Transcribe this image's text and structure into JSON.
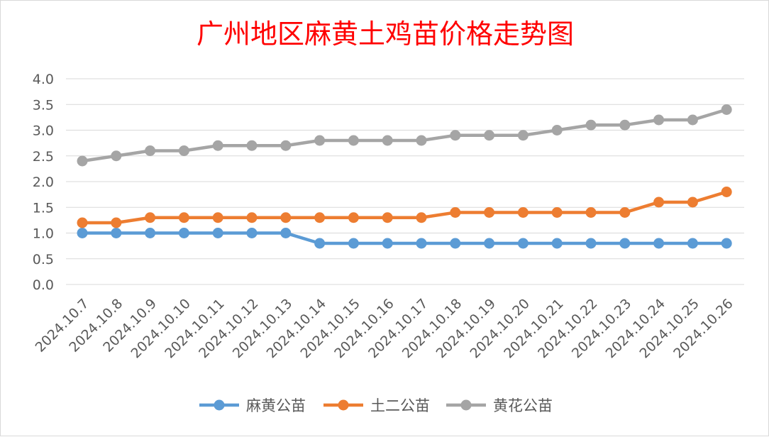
{
  "chart_data": {
    "type": "line",
    "title": "广州地区麻黄土鸡苗价格走势图",
    "title_color": "#ff0000",
    "categories": [
      "2024.10.7",
      "2024.10.8",
      "2024.10.9",
      "2024.10.10",
      "2024.10.11",
      "2024.10.12",
      "2024.10.13",
      "2024.10.14",
      "2024.10.15",
      "2024.10.16",
      "2024.10.17",
      "2024.10.18",
      "2024.10.19",
      "2024.10.20",
      "2024.10.21",
      "2024.10.22",
      "2024.10.23",
      "2024.10.24",
      "2024.10.25",
      "2024.10.26"
    ],
    "ylim": [
      0,
      4.0
    ],
    "yticks": [
      "0.0",
      "0.5",
      "1.0",
      "1.5",
      "2.0",
      "2.5",
      "3.0",
      "3.5",
      "4.0"
    ],
    "grid": true,
    "legend_position": "bottom",
    "series": [
      {
        "name": "麻黄公苗",
        "color": "#5b9bd5",
        "values": [
          1.0,
          1.0,
          1.0,
          1.0,
          1.0,
          1.0,
          1.0,
          0.8,
          0.8,
          0.8,
          0.8,
          0.8,
          0.8,
          0.8,
          0.8,
          0.8,
          0.8,
          0.8,
          0.8,
          0.8
        ]
      },
      {
        "name": "土二公苗",
        "color": "#ed7d31",
        "values": [
          1.2,
          1.2,
          1.3,
          1.3,
          1.3,
          1.3,
          1.3,
          1.3,
          1.3,
          1.3,
          1.3,
          1.4,
          1.4,
          1.4,
          1.4,
          1.4,
          1.4,
          1.6,
          1.6,
          1.8
        ]
      },
      {
        "name": "黄花公苗",
        "color": "#a5a5a5",
        "values": [
          2.4,
          2.5,
          2.6,
          2.6,
          2.7,
          2.7,
          2.7,
          2.8,
          2.8,
          2.8,
          2.8,
          2.9,
          2.9,
          2.9,
          3.0,
          3.1,
          3.1,
          3.2,
          3.2,
          3.4
        ]
      }
    ]
  }
}
